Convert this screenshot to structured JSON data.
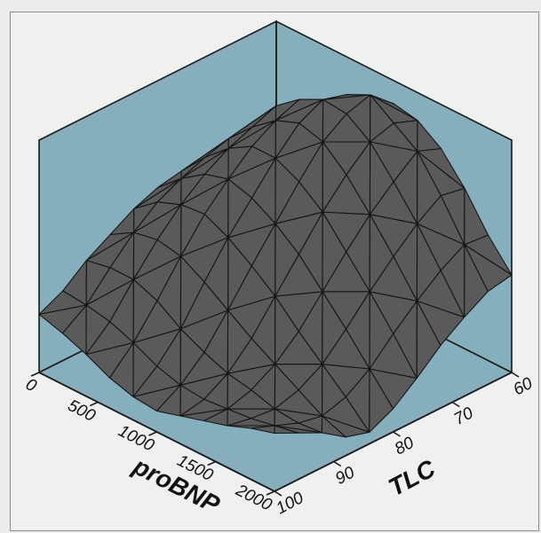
{
  "chart_data": {
    "type": "surface3d",
    "title": "",
    "x_axis": {
      "label": "proBNP",
      "ticks": [
        0,
        500,
        1000,
        1500,
        2000
      ],
      "range": [
        0,
        2000
      ]
    },
    "y_axis": {
      "label": "TLC",
      "ticks": [
        60,
        70,
        80,
        90,
        100
      ],
      "range": [
        60,
        100
      ]
    },
    "z_axis": {
      "label": "",
      "range": [
        0,
        1
      ]
    },
    "colors": {
      "panel": "#85afbd",
      "surface": "#5a5a5a",
      "mesh": "#151515",
      "frame": "#1a1a1a",
      "background": "#eff0f0"
    },
    "grid_size": [
      11,
      11
    ],
    "z_values": [
      [
        0.25,
        0.3,
        0.38,
        0.44,
        0.5,
        0.54,
        0.56,
        0.57,
        0.56,
        0.54,
        0.5
      ],
      [
        0.22,
        0.29,
        0.4,
        0.5,
        0.58,
        0.63,
        0.67,
        0.7,
        0.72,
        0.67,
        0.6
      ],
      [
        0.18,
        0.27,
        0.4,
        0.52,
        0.62,
        0.7,
        0.76,
        0.8,
        0.84,
        0.77,
        0.66
      ],
      [
        0.13,
        0.23,
        0.36,
        0.5,
        0.63,
        0.73,
        0.82,
        0.88,
        0.92,
        0.85,
        0.76
      ],
      [
        0.1,
        0.18,
        0.29,
        0.44,
        0.58,
        0.7,
        0.82,
        0.92,
        0.97,
        0.94,
        0.83
      ],
      [
        0.09,
        0.15,
        0.24,
        0.37,
        0.51,
        0.64,
        0.77,
        0.89,
        0.96,
        0.99,
        0.9
      ],
      [
        0.12,
        0.14,
        0.2,
        0.3,
        0.43,
        0.56,
        0.69,
        0.8,
        0.89,
        0.92,
        0.88
      ],
      [
        0.15,
        0.15,
        0.18,
        0.24,
        0.33,
        0.45,
        0.57,
        0.68,
        0.77,
        0.85,
        0.81
      ],
      [
        0.18,
        0.16,
        0.15,
        0.18,
        0.24,
        0.34,
        0.45,
        0.55,
        0.64,
        0.71,
        0.69
      ],
      [
        0.22,
        0.18,
        0.14,
        0.12,
        0.15,
        0.22,
        0.32,
        0.41,
        0.49,
        0.55,
        0.54
      ],
      [
        0.25,
        0.2,
        0.15,
        0.08,
        0.05,
        0.1,
        0.18,
        0.27,
        0.34,
        0.4,
        0.42
      ]
    ]
  }
}
